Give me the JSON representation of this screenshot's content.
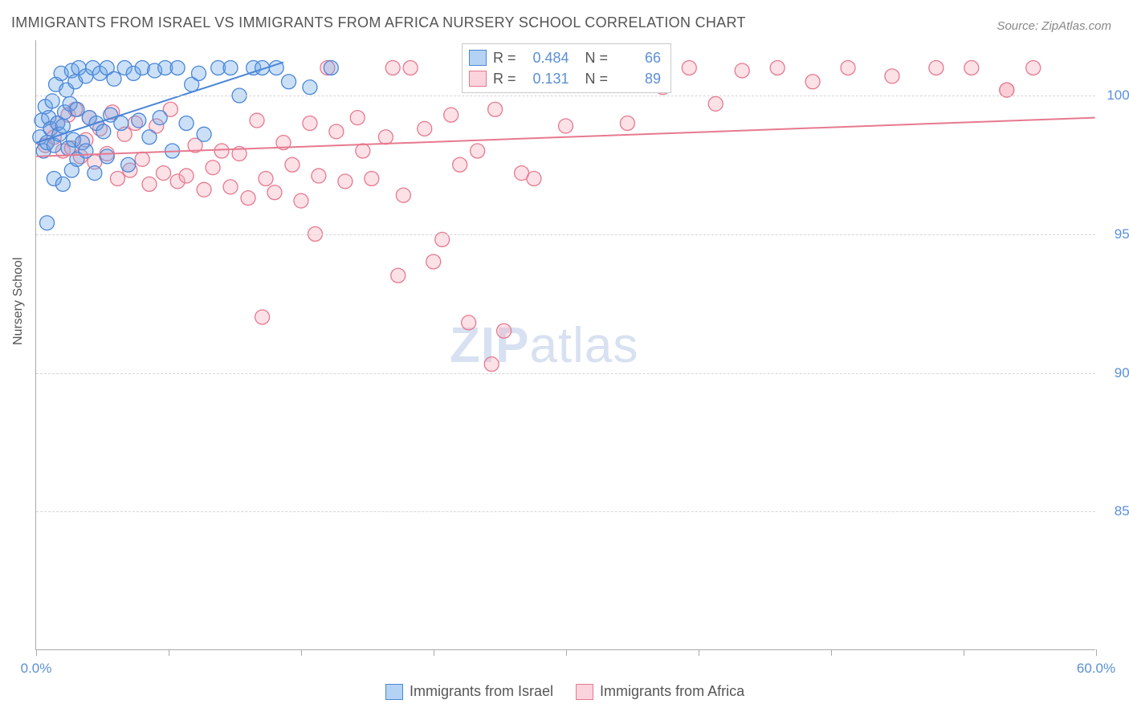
{
  "title": "IMMIGRANTS FROM ISRAEL VS IMMIGRANTS FROM AFRICA NURSERY SCHOOL CORRELATION CHART",
  "source": "Source: ZipAtlas.com",
  "y_axis_label": "Nursery School",
  "watermark_zip": "ZIP",
  "watermark_atlas": "atlas",
  "chart": {
    "type": "scatter",
    "background_color": "#ffffff",
    "grid_color": "#d5d5d5",
    "axis_color": "#aaaaaa",
    "xlim": [
      0,
      60
    ],
    "ylim": [
      80,
      102
    ],
    "x_ticks": [
      0,
      7.5,
      15,
      22.5,
      30,
      37.5,
      45,
      52.5,
      60
    ],
    "x_tick_labels": {
      "0": "0.0%",
      "60": "60.0%"
    },
    "y_gridlines": [
      85,
      90,
      95,
      100
    ],
    "y_tick_labels": {
      "85": "85.0%",
      "90": "90.0%",
      "95": "95.0%",
      "100": "100.0%"
    },
    "marker_radius": 9,
    "marker_opacity": 0.35,
    "line_width": 2,
    "series": [
      {
        "name": "Immigrants from Israel",
        "color_fill": "#6aa6e8",
        "color_stroke": "#4a86d8",
        "r_value": "0.484",
        "n_value": "66",
        "trend": {
          "x1": 0,
          "y1": 98.3,
          "x2": 14,
          "y2": 101.2
        },
        "points": [
          [
            0.2,
            98.5
          ],
          [
            0.3,
            99.1
          ],
          [
            0.4,
            98.0
          ],
          [
            0.5,
            99.6
          ],
          [
            0.6,
            98.3
          ],
          [
            0.7,
            99.2
          ],
          [
            0.8,
            98.8
          ],
          [
            0.9,
            99.8
          ],
          [
            1.0,
            98.2
          ],
          [
            1.1,
            100.4
          ],
          [
            1.2,
            99.0
          ],
          [
            1.3,
            98.6
          ],
          [
            1.4,
            100.8
          ],
          [
            1.5,
            98.9
          ],
          [
            1.6,
            99.4
          ],
          [
            1.7,
            100.2
          ],
          [
            1.8,
            98.1
          ],
          [
            1.9,
            99.7
          ],
          [
            2.0,
            100.9
          ],
          [
            2.1,
            98.4
          ],
          [
            2.2,
            100.5
          ],
          [
            2.3,
            99.5
          ],
          [
            2.4,
            101.0
          ],
          [
            2.6,
            98.3
          ],
          [
            2.8,
            100.7
          ],
          [
            3.0,
            99.2
          ],
          [
            3.2,
            101.0
          ],
          [
            3.4,
            99.0
          ],
          [
            3.6,
            100.8
          ],
          [
            3.8,
            98.7
          ],
          [
            4.0,
            101.0
          ],
          [
            4.2,
            99.3
          ],
          [
            4.4,
            100.6
          ],
          [
            4.8,
            99.0
          ],
          [
            5.0,
            101.0
          ],
          [
            5.2,
            97.5
          ],
          [
            5.5,
            100.8
          ],
          [
            5.8,
            99.1
          ],
          [
            6.0,
            101.0
          ],
          [
            6.4,
            98.5
          ],
          [
            6.7,
            100.9
          ],
          [
            7.0,
            99.2
          ],
          [
            7.3,
            101.0
          ],
          [
            7.7,
            98.0
          ],
          [
            8.0,
            101.0
          ],
          [
            8.5,
            99.0
          ],
          [
            8.8,
            100.4
          ],
          [
            9.2,
            100.8
          ],
          [
            9.5,
            98.6
          ],
          [
            10.3,
            101.0
          ],
          [
            11.0,
            101.0
          ],
          [
            11.5,
            100.0
          ],
          [
            12.3,
            101.0
          ],
          [
            12.8,
            101.0
          ],
          [
            13.6,
            101.0
          ],
          [
            14.3,
            100.5
          ],
          [
            15.5,
            100.3
          ],
          [
            16.7,
            101.0
          ],
          [
            0.6,
            95.4
          ],
          [
            1.0,
            97.0
          ],
          [
            1.5,
            96.8
          ],
          [
            2.0,
            97.3
          ],
          [
            2.3,
            97.7
          ],
          [
            2.8,
            98.0
          ],
          [
            3.3,
            97.2
          ],
          [
            4.0,
            97.8
          ]
        ]
      },
      {
        "name": "Immigrants from Africa",
        "color_fill": "#f6a8bb",
        "color_stroke": "#e6798f",
        "r_value": "0.131",
        "n_value": "89",
        "trend": {
          "x1": 0,
          "y1": 97.8,
          "x2": 60,
          "y2": 99.2
        },
        "points": [
          [
            0.5,
            98.2
          ],
          [
            0.8,
            98.8
          ],
          [
            1.0,
            98.5
          ],
          [
            1.2,
            99.0
          ],
          [
            1.5,
            98.0
          ],
          [
            1.8,
            99.3
          ],
          [
            2.0,
            98.1
          ],
          [
            2.2,
            99.5
          ],
          [
            2.5,
            97.8
          ],
          [
            2.8,
            98.4
          ],
          [
            3.0,
            99.2
          ],
          [
            3.3,
            97.6
          ],
          [
            3.6,
            98.8
          ],
          [
            4.0,
            97.9
          ],
          [
            4.3,
            99.4
          ],
          [
            4.6,
            97.0
          ],
          [
            5.0,
            98.6
          ],
          [
            5.3,
            97.3
          ],
          [
            5.6,
            99.0
          ],
          [
            6.0,
            97.7
          ],
          [
            6.4,
            96.8
          ],
          [
            6.8,
            98.9
          ],
          [
            7.2,
            97.2
          ],
          [
            7.6,
            99.5
          ],
          [
            8.0,
            96.9
          ],
          [
            8.5,
            97.1
          ],
          [
            9.0,
            98.2
          ],
          [
            9.5,
            96.6
          ],
          [
            10.0,
            97.4
          ],
          [
            10.5,
            98.0
          ],
          [
            11.0,
            96.7
          ],
          [
            11.5,
            97.9
          ],
          [
            12.0,
            96.3
          ],
          [
            12.5,
            99.1
          ],
          [
            13.0,
            97.0
          ],
          [
            13.5,
            96.5
          ],
          [
            14.0,
            98.3
          ],
          [
            14.5,
            97.5
          ],
          [
            15.0,
            96.2
          ],
          [
            15.5,
            99.0
          ],
          [
            16.0,
            97.1
          ],
          [
            16.5,
            101.0
          ],
          [
            17.0,
            98.7
          ],
          [
            17.5,
            96.9
          ],
          [
            18.2,
            99.2
          ],
          [
            19.0,
            97.0
          ],
          [
            19.8,
            98.5
          ],
          [
            20.2,
            101.0
          ],
          [
            20.8,
            96.4
          ],
          [
            21.2,
            101.0
          ],
          [
            22.0,
            98.8
          ],
          [
            23.0,
            94.8
          ],
          [
            23.5,
            99.3
          ],
          [
            24.0,
            97.5
          ],
          [
            25.0,
            98.0
          ],
          [
            25.8,
            90.3
          ],
          [
            26.0,
            99.5
          ],
          [
            26.5,
            91.5
          ],
          [
            27.0,
            101.0
          ],
          [
            28.2,
            97.0
          ],
          [
            29.0,
            100.5
          ],
          [
            30.0,
            98.9
          ],
          [
            31.0,
            101.0
          ],
          [
            32.0,
            100.8
          ],
          [
            32.5,
            101.0
          ],
          [
            33.0,
            101.0
          ],
          [
            33.5,
            99.0
          ],
          [
            34.5,
            101.0
          ],
          [
            34.5,
            101.0
          ],
          [
            35.5,
            100.3
          ],
          [
            37.0,
            101.0
          ],
          [
            38.5,
            99.7
          ],
          [
            40.0,
            100.9
          ],
          [
            42.0,
            101.0
          ],
          [
            44.0,
            100.5
          ],
          [
            46.0,
            101.0
          ],
          [
            48.5,
            100.7
          ],
          [
            51.0,
            101.0
          ],
          [
            53.0,
            101.0
          ],
          [
            55.0,
            100.2
          ],
          [
            55.0,
            100.2
          ],
          [
            56.5,
            101.0
          ],
          [
            12.8,
            92.0
          ],
          [
            20.5,
            93.5
          ],
          [
            22.5,
            94.0
          ],
          [
            24.5,
            91.8
          ],
          [
            27.5,
            97.2
          ],
          [
            15.8,
            95.0
          ],
          [
            18.5,
            98.0
          ]
        ]
      }
    ]
  },
  "legend_top": {
    "r_label": "R =",
    "n_label": "N ="
  }
}
